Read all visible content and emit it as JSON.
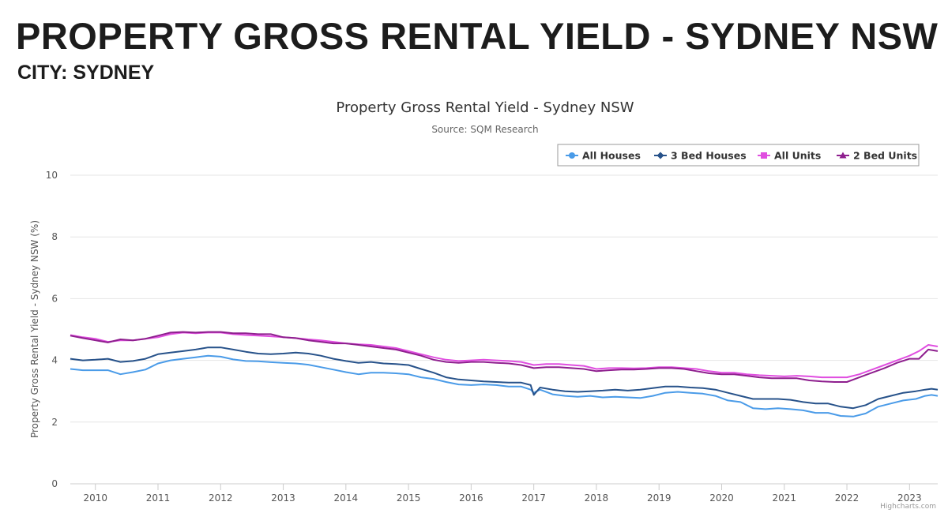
{
  "header": {
    "title": "PROPERTY GROSS RENTAL YIELD - SYDNEY NSW",
    "subtitle": "CITY: SYDNEY"
  },
  "credits": "Highcharts.com",
  "chart_data": {
    "type": "line",
    "title": "Property Gross Rental Yield - Sydney NSW",
    "subtitle": "Source: SQM Research",
    "xlabel": "",
    "ylabel": "Property Gross Rental Yield - Sydney NSW (%)",
    "xlim": [
      2009.6,
      2023.45
    ],
    "ylim": [
      0,
      10
    ],
    "yticks": [
      0,
      2,
      4,
      6,
      8,
      10
    ],
    "xticks": [
      "2010",
      "2011",
      "2012",
      "2013",
      "2014",
      "2015",
      "2016",
      "2017",
      "2018",
      "2019",
      "2020",
      "2021",
      "2022",
      "2023"
    ],
    "grid": true,
    "legend_position": "top-right",
    "series": [
      {
        "name": "All Houses",
        "color": "#4a9be8",
        "marker": "circle",
        "x": [
          2009.6,
          2009.8,
          2010.0,
          2010.2,
          2010.4,
          2010.6,
          2010.8,
          2011.0,
          2011.2,
          2011.4,
          2011.6,
          2011.8,
          2012.0,
          2012.2,
          2012.4,
          2012.6,
          2012.8,
          2013.0,
          2013.2,
          2013.4,
          2013.6,
          2013.8,
          2014.0,
          2014.2,
          2014.4,
          2014.6,
          2014.8,
          2015.0,
          2015.2,
          2015.4,
          2015.6,
          2015.8,
          2016.0,
          2016.2,
          2016.4,
          2016.6,
          2016.8,
          2016.95,
          2017.0,
          2017.1,
          2017.3,
          2017.5,
          2017.7,
          2017.9,
          2018.1,
          2018.3,
          2018.5,
          2018.7,
          2018.9,
          2019.1,
          2019.3,
          2019.5,
          2019.7,
          2019.9,
          2020.1,
          2020.3,
          2020.5,
          2020.7,
          2020.9,
          2021.1,
          2021.3,
          2021.5,
          2021.7,
          2021.9,
          2022.1,
          2022.3,
          2022.5,
          2022.7,
          2022.9,
          2023.1,
          2023.25,
          2023.35,
          2023.45
        ],
        "y": [
          3.72,
          3.68,
          3.68,
          3.68,
          3.55,
          3.62,
          3.7,
          3.9,
          4.0,
          4.05,
          4.1,
          4.15,
          4.12,
          4.03,
          3.98,
          3.97,
          3.94,
          3.92,
          3.9,
          3.86,
          3.78,
          3.7,
          3.62,
          3.55,
          3.6,
          3.6,
          3.58,
          3.55,
          3.45,
          3.4,
          3.3,
          3.22,
          3.2,
          3.22,
          3.2,
          3.15,
          3.15,
          3.05,
          2.95,
          3.05,
          2.9,
          2.85,
          2.82,
          2.85,
          2.8,
          2.82,
          2.8,
          2.78,
          2.85,
          2.95,
          2.98,
          2.95,
          2.92,
          2.85,
          2.7,
          2.65,
          2.45,
          2.42,
          2.45,
          2.42,
          2.38,
          2.3,
          2.3,
          2.2,
          2.18,
          2.28,
          2.5,
          2.6,
          2.7,
          2.75,
          2.85,
          2.88,
          2.85
        ]
      },
      {
        "name": "3 Bed Houses",
        "color": "#27528a",
        "marker": "diamond",
        "x": [
          2009.6,
          2009.8,
          2010.0,
          2010.2,
          2010.4,
          2010.6,
          2010.8,
          2011.0,
          2011.2,
          2011.4,
          2011.6,
          2011.8,
          2012.0,
          2012.2,
          2012.4,
          2012.6,
          2012.8,
          2013.0,
          2013.2,
          2013.4,
          2013.6,
          2013.8,
          2014.0,
          2014.2,
          2014.4,
          2014.6,
          2014.8,
          2015.0,
          2015.2,
          2015.4,
          2015.6,
          2015.8,
          2016.0,
          2016.2,
          2016.4,
          2016.6,
          2016.8,
          2016.95,
          2017.0,
          2017.1,
          2017.3,
          2017.5,
          2017.7,
          2017.9,
          2018.1,
          2018.3,
          2018.5,
          2018.7,
          2018.9,
          2019.1,
          2019.3,
          2019.5,
          2019.7,
          2019.9,
          2020.1,
          2020.3,
          2020.5,
          2020.7,
          2020.9,
          2021.1,
          2021.3,
          2021.5,
          2021.7,
          2021.9,
          2022.1,
          2022.3,
          2022.5,
          2022.7,
          2022.9,
          2023.1,
          2023.25,
          2023.35,
          2023.45
        ],
        "y": [
          4.05,
          4.0,
          4.02,
          4.05,
          3.95,
          3.98,
          4.05,
          4.2,
          4.25,
          4.3,
          4.35,
          4.42,
          4.42,
          4.35,
          4.28,
          4.22,
          4.2,
          4.22,
          4.25,
          4.22,
          4.15,
          4.05,
          3.98,
          3.92,
          3.95,
          3.9,
          3.88,
          3.85,
          3.72,
          3.6,
          3.45,
          3.38,
          3.35,
          3.32,
          3.3,
          3.28,
          3.28,
          3.2,
          2.88,
          3.12,
          3.05,
          3.0,
          2.98,
          3.0,
          3.02,
          3.05,
          3.02,
          3.05,
          3.1,
          3.15,
          3.15,
          3.12,
          3.1,
          3.05,
          2.95,
          2.85,
          2.75,
          2.75,
          2.75,
          2.72,
          2.65,
          2.6,
          2.6,
          2.5,
          2.45,
          2.55,
          2.75,
          2.85,
          2.95,
          3.0,
          3.05,
          3.08,
          3.05
        ]
      },
      {
        "name": "All Units",
        "color": "#e04ee0",
        "marker": "square",
        "x": [
          2009.6,
          2009.8,
          2010.0,
          2010.2,
          2010.4,
          2010.6,
          2010.8,
          2011.0,
          2011.2,
          2011.4,
          2011.6,
          2011.8,
          2012.0,
          2012.2,
          2012.4,
          2012.6,
          2012.8,
          2013.0,
          2013.2,
          2013.4,
          2013.6,
          2013.8,
          2014.0,
          2014.2,
          2014.4,
          2014.6,
          2014.8,
          2015.0,
          2015.2,
          2015.4,
          2015.6,
          2015.8,
          2016.0,
          2016.2,
          2016.4,
          2016.6,
          2016.8,
          2017.0,
          2017.2,
          2017.4,
          2017.6,
          2017.8,
          2018.0,
          2018.2,
          2018.4,
          2018.6,
          2018.8,
          2019.0,
          2019.2,
          2019.4,
          2019.6,
          2019.8,
          2020.0,
          2020.2,
          2020.4,
          2020.6,
          2020.8,
          2021.0,
          2021.2,
          2021.4,
          2021.6,
          2021.8,
          2022.0,
          2022.2,
          2022.4,
          2022.6,
          2022.8,
          2023.0,
          2023.15,
          2023.3,
          2023.45
        ],
        "y": [
          4.82,
          4.75,
          4.7,
          4.6,
          4.65,
          4.65,
          4.7,
          4.75,
          4.85,
          4.9,
          4.88,
          4.9,
          4.9,
          4.85,
          4.82,
          4.8,
          4.78,
          4.75,
          4.72,
          4.68,
          4.65,
          4.6,
          4.55,
          4.52,
          4.5,
          4.45,
          4.4,
          4.3,
          4.2,
          4.1,
          4.02,
          3.98,
          4.0,
          4.02,
          4.0,
          3.98,
          3.95,
          3.85,
          3.88,
          3.88,
          3.85,
          3.82,
          3.72,
          3.75,
          3.75,
          3.74,
          3.75,
          3.78,
          3.78,
          3.75,
          3.72,
          3.65,
          3.6,
          3.6,
          3.55,
          3.52,
          3.5,
          3.48,
          3.5,
          3.48,
          3.45,
          3.45,
          3.45,
          3.55,
          3.7,
          3.85,
          4.0,
          4.15,
          4.3,
          4.5,
          4.45
        ]
      },
      {
        "name": "2 Bed Units",
        "color": "#8e1f8e",
        "marker": "triangle",
        "x": [
          2009.6,
          2009.8,
          2010.0,
          2010.2,
          2010.4,
          2010.6,
          2010.8,
          2011.0,
          2011.2,
          2011.4,
          2011.6,
          2011.8,
          2012.0,
          2012.2,
          2012.4,
          2012.6,
          2012.8,
          2013.0,
          2013.2,
          2013.4,
          2013.6,
          2013.8,
          2014.0,
          2014.2,
          2014.4,
          2014.6,
          2014.8,
          2015.0,
          2015.2,
          2015.4,
          2015.6,
          2015.8,
          2016.0,
          2016.2,
          2016.4,
          2016.6,
          2016.8,
          2017.0,
          2017.2,
          2017.4,
          2017.6,
          2017.8,
          2018.0,
          2018.2,
          2018.4,
          2018.6,
          2018.8,
          2019.0,
          2019.2,
          2019.4,
          2019.6,
          2019.8,
          2020.0,
          2020.2,
          2020.4,
          2020.6,
          2020.8,
          2021.0,
          2021.2,
          2021.4,
          2021.6,
          2021.8,
          2022.0,
          2022.2,
          2022.4,
          2022.6,
          2022.8,
          2023.0,
          2023.15,
          2023.3,
          2023.45
        ],
        "y": [
          4.8,
          4.72,
          4.65,
          4.58,
          4.68,
          4.65,
          4.7,
          4.8,
          4.9,
          4.92,
          4.9,
          4.92,
          4.92,
          4.88,
          4.88,
          4.85,
          4.85,
          4.75,
          4.72,
          4.65,
          4.6,
          4.55,
          4.55,
          4.5,
          4.45,
          4.4,
          4.35,
          4.25,
          4.15,
          4.02,
          3.95,
          3.92,
          3.95,
          3.95,
          3.92,
          3.9,
          3.85,
          3.75,
          3.78,
          3.78,
          3.75,
          3.72,
          3.65,
          3.68,
          3.7,
          3.7,
          3.72,
          3.75,
          3.75,
          3.72,
          3.65,
          3.58,
          3.55,
          3.55,
          3.5,
          3.45,
          3.42,
          3.42,
          3.42,
          3.35,
          3.32,
          3.3,
          3.3,
          3.45,
          3.6,
          3.75,
          3.92,
          4.05,
          4.05,
          4.35,
          4.3
        ]
      }
    ]
  }
}
